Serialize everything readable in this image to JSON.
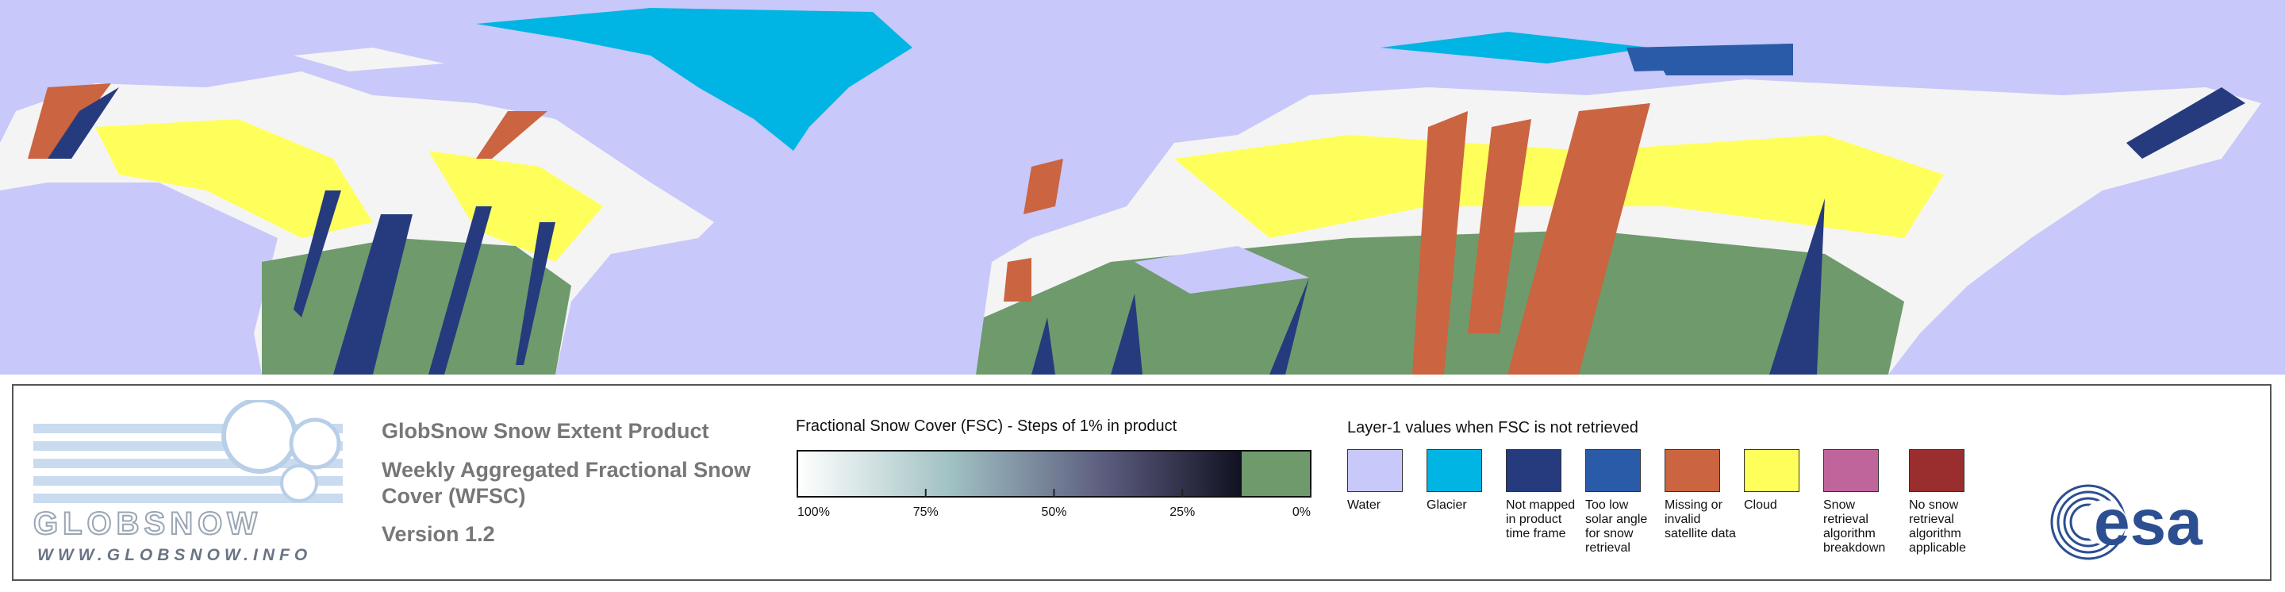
{
  "logo": {
    "name": "GLOBSNOW",
    "url": "WWW.GLOBSNOW.INFO"
  },
  "product": {
    "title": "GlobSnow Snow Extent Product",
    "subtitle": "Weekly Aggregated Fractional Snow Cover (WFSC)",
    "version": "Version 1.2"
  },
  "fsc_scale": {
    "title": "Fractional Snow Cover (FSC) - Steps of 1% in product",
    "ticks": [
      {
        "value": 100,
        "label": "100%"
      },
      {
        "value": 75,
        "label": "75%"
      },
      {
        "value": 50,
        "label": "50%"
      },
      {
        "value": 25,
        "label": "25%"
      },
      {
        "value": 0,
        "label": "0%"
      }
    ],
    "snow_free_color": "#6f9a6c"
  },
  "layer1": {
    "title": "Layer-1 values when FSC is not retrieved",
    "items": [
      {
        "label": "Water",
        "color": "#c8c8fa"
      },
      {
        "label": "Glacier",
        "color": "#00b4e4"
      },
      {
        "label": "Not mapped in product time frame",
        "color": "#253b7e"
      },
      {
        "label": "Too low solar angle for snow retrieval",
        "color": "#2a5ba8"
      },
      {
        "label": "Missing or invalid satellite data",
        "color": "#cb6440"
      },
      {
        "label": "Cloud",
        "color": "#ffff5c"
      },
      {
        "label": "Snow retrieval algorithm breakdown",
        "color": "#c0649c"
      },
      {
        "label": "No snow retrieval algorithm applicable",
        "color": "#9a2d2d"
      }
    ]
  },
  "esa": "esa"
}
